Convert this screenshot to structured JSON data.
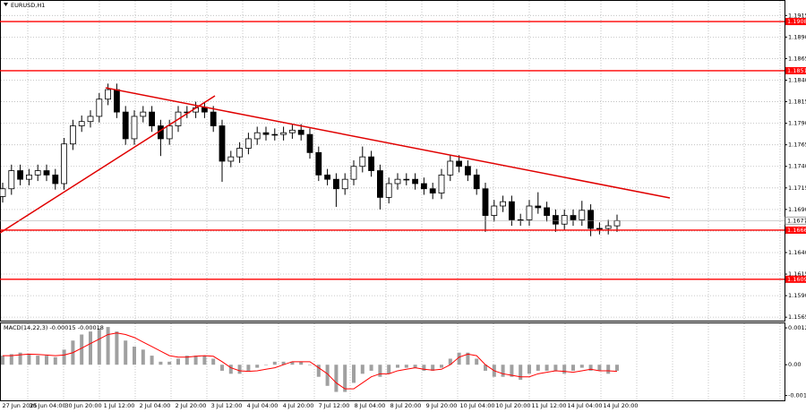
{
  "chart_data": [
    {
      "type": "candlestick",
      "title": "EURUSD,H1",
      "ylim": [
        1.1561,
        1.1933
      ],
      "yticks": [
        1.1915,
        {
          "value": 1.189,
          "label": "1.1890"
        },
        1.1865,
        {
          "value": 1.184,
          "label": "1.1840"
        },
        1.1815,
        {
          "value": 1.179,
          "label": "1.1790"
        },
        1.1765,
        {
          "value": 1.174,
          "label": "1.1740"
        },
        1.1715,
        {
          "value": 1.169,
          "label": "1.1690"
        },
        1.1665,
        {
          "value": 1.164,
          "label": "1.1640"
        },
        1.1615,
        {
          "value": 1.159,
          "label": "1.1590"
        },
        1.1565
      ],
      "x_labels": [
        "27 Jun 2025",
        "30 Jun 04:00",
        "30 Jun 20:00",
        "1 Jul 12:00",
        "2 Jul 04:00",
        "2 Jul 20:00",
        "3 Jul 12:00",
        "4 Jul 04:00",
        "4 Jul 20:00",
        "7 Jul 12:00",
        "8 Jul 04:00",
        "8 Jul 20:00",
        "9 Jul 20:00",
        "10 Jul 04:00",
        "10 Jul 20:00",
        "11 Jul 12:00",
        "14 Jul 04:00",
        "14 Jul 20:00"
      ],
      "grid": true,
      "up_color": "#ffffff",
      "down_color": "#000000",
      "line_color": "#000000",
      "levels": [
        1.1908,
        1.1851,
        1.1666,
        1.1609
      ],
      "level_color": "#ff0000",
      "last_price": 1.1677,
      "last_price_color": "#a0a0a0",
      "open": [
        1.1705,
        1.1714,
        1.1735,
        1.1725,
        1.173,
        1.1735,
        1.173,
        1.172,
        1.1766,
        1.1787,
        1.1792,
        1.1798,
        1.1818,
        1.1829,
        1.1803,
        1.1772,
        1.1798,
        1.1803,
        1.1787,
        1.1772,
        1.1787,
        1.1803,
        1.1803,
        1.1808,
        1.1803,
        1.1787,
        1.1746,
        1.1751,
        1.1761,
        1.1772,
        1.1779,
        1.1777,
        1.1777,
        1.1779,
        1.1782,
        1.1777,
        1.1756,
        1.173,
        1.1725,
        1.1714,
        1.1725,
        1.174,
        1.1751,
        1.1735,
        1.1704,
        1.172,
        1.1725,
        1.1725,
        1.172,
        1.1714,
        1.1709,
        1.173,
        1.1746,
        1.174,
        1.173,
        1.1714,
        1.1683,
        1.1694,
        1.1699,
        1.1678,
        1.1678,
        1.1694,
        1.1692,
        1.1683,
        1.1673,
        1.1683,
        1.1678,
        1.1689,
        1.1668,
        1.1668,
        1.1671
      ],
      "high": [
        1.1721,
        1.1742,
        1.1742,
        1.1737,
        1.1742,
        1.1742,
        1.1737,
        1.1773,
        1.1794,
        1.1799,
        1.1805,
        1.1825,
        1.1836,
        1.1836,
        1.181,
        1.1805,
        1.181,
        1.181,
        1.1794,
        1.1794,
        1.181,
        1.181,
        1.1815,
        1.1815,
        1.181,
        1.1794,
        1.1758,
        1.1768,
        1.1779,
        1.1786,
        1.1786,
        1.1784,
        1.1786,
        1.1789,
        1.1789,
        1.1784,
        1.1763,
        1.1737,
        1.1732,
        1.1732,
        1.1747,
        1.1763,
        1.1758,
        1.1742,
        1.1727,
        1.1732,
        1.1732,
        1.1732,
        1.1727,
        1.1721,
        1.1737,
        1.1753,
        1.1753,
        1.1747,
        1.1737,
        1.1721,
        1.1701,
        1.1706,
        1.1706,
        1.1685,
        1.1701,
        1.171,
        1.1699,
        1.169,
        1.169,
        1.169,
        1.17,
        1.1696,
        1.1675,
        1.1678,
        1.1684
      ],
      "low": [
        1.1698,
        1.1707,
        1.1718,
        1.1718,
        1.1723,
        1.1723,
        1.1713,
        1.1713,
        1.1759,
        1.178,
        1.1785,
        1.1791,
        1.1811,
        1.1796,
        1.1765,
        1.1765,
        1.1791,
        1.178,
        1.1752,
        1.1765,
        1.178,
        1.1796,
        1.1796,
        1.1796,
        1.178,
        1.1722,
        1.1739,
        1.1744,
        1.1754,
        1.1765,
        1.177,
        1.177,
        1.177,
        1.1772,
        1.177,
        1.1749,
        1.1723,
        1.1718,
        1.1693,
        1.1707,
        1.1718,
        1.1733,
        1.1728,
        1.169,
        1.1697,
        1.1713,
        1.1718,
        1.1713,
        1.1707,
        1.1702,
        1.1702,
        1.1723,
        1.1733,
        1.1723,
        1.1707,
        1.1664,
        1.1676,
        1.1687,
        1.1671,
        1.1671,
        1.1671,
        1.1685,
        1.1676,
        1.1664,
        1.1666,
        1.1671,
        1.1671,
        1.1659,
        1.1661,
        1.1661,
        1.1664
      ],
      "close": [
        1.1714,
        1.1735,
        1.1725,
        1.173,
        1.1735,
        1.173,
        1.172,
        1.1766,
        1.1787,
        1.1792,
        1.1798,
        1.1818,
        1.1829,
        1.1803,
        1.1772,
        1.1798,
        1.1803,
        1.1787,
        1.1772,
        1.1787,
        1.1803,
        1.1803,
        1.1808,
        1.1803,
        1.1787,
        1.1746,
        1.1751,
        1.1761,
        1.1772,
        1.1779,
        1.1777,
        1.1777,
        1.1779,
        1.1782,
        1.1777,
        1.1756,
        1.173,
        1.1725,
        1.1714,
        1.1725,
        1.174,
        1.1751,
        1.1735,
        1.1704,
        1.172,
        1.1725,
        1.1725,
        1.172,
        1.1714,
        1.1709,
        1.173,
        1.1746,
        1.174,
        1.173,
        1.1714,
        1.1683,
        1.1694,
        1.1699,
        1.1678,
        1.1678,
        1.1694,
        1.1692,
        1.1683,
        1.1673,
        1.1683,
        1.1678,
        1.1689,
        1.1668,
        1.1668,
        1.1671,
        1.1677
      ]
    },
    {
      "type": "macd",
      "title": "MACD(14,22,3) -0.00015 -0.00018",
      "ylim": [
        -0.00118,
        0.0014
      ],
      "yticks": [
        0.00122,
        {
          "value": 0,
          "label": "0.00"
        },
        -0.00102
      ],
      "series": [
        {
          "color": "#a0a0a0",
          "values": [
            0.0003,
            0.00035,
            0.0004,
            0.00035,
            0.0003,
            0.0003,
            0.00025,
            0.0005,
            0.0008,
            0.001,
            0.0011,
            0.0012,
            0.00125,
            0.0011,
            0.0008,
            0.0006,
            0.0005,
            0.0003,
            0.0001,
            0.0001,
            0.0002,
            0.0003,
            0.0003,
            0.0003,
            0.0002,
            -0.0002,
            -0.0003,
            -0.0003,
            -0.0002,
            -0.0001,
            0,
            0.0001,
            0.0001,
            0.0001,
            0.0001,
            0,
            -0.0004,
            -0.0007,
            -0.0009,
            -0.0009,
            -0.0006,
            -0.0003,
            -0.0002,
            -0.0004,
            -0.0003,
            -0.0001,
            -0.0001,
            -0.0001,
            -0.0002,
            -0.0002,
            -0.0001,
            0.0002,
            0.0004,
            0.0004,
            0.0002,
            -0.0002,
            -0.0004,
            -0.0004,
            -0.0004,
            -0.0005,
            -0.0003,
            -0.0002,
            -0.0002,
            -0.0002,
            -0.0003,
            -0.0002,
            -0.0001,
            -0.0002,
            -0.0002,
            -0.0003,
            -0.0002
          ]
        },
        {
          "color": "#ff0000",
          "values": [
            0.0003,
            0.0003,
            0.00033,
            0.00035,
            0.00034,
            0.00032,
            0.0003,
            0.00032,
            0.0004,
            0.00055,
            0.0007,
            0.00085,
            0.001,
            0.00105,
            0.001,
            0.0009,
            0.00075,
            0.0006,
            0.00045,
            0.0003,
            0.00025,
            0.00025,
            0.00028,
            0.0003,
            0.00028,
            0.0001,
            -0.0001,
            -0.0002,
            -0.00022,
            -0.0002,
            -0.00015,
            -0.0001,
            0,
            0.0001,
            0.0001,
            0.0001,
            -0.0001,
            -0.0003,
            -0.0006,
            -0.0008,
            -0.0008,
            -0.0006,
            -0.0004,
            -0.0003,
            -0.0003,
            -0.0002,
            -0.00015,
            -0.0001,
            -0.00015,
            -0.00018,
            -0.00015,
            0,
            0.00025,
            0.00035,
            0.0003,
            0,
            -0.0002,
            -0.0003,
            -0.00035,
            -0.0004,
            -0.0004,
            -0.0003,
            -0.00025,
            -0.0002,
            -0.00022,
            -0.00025,
            -0.0002,
            -0.00015,
            -0.0002,
            -0.0002,
            -0.00022
          ]
        }
      ]
    }
  ]
}
